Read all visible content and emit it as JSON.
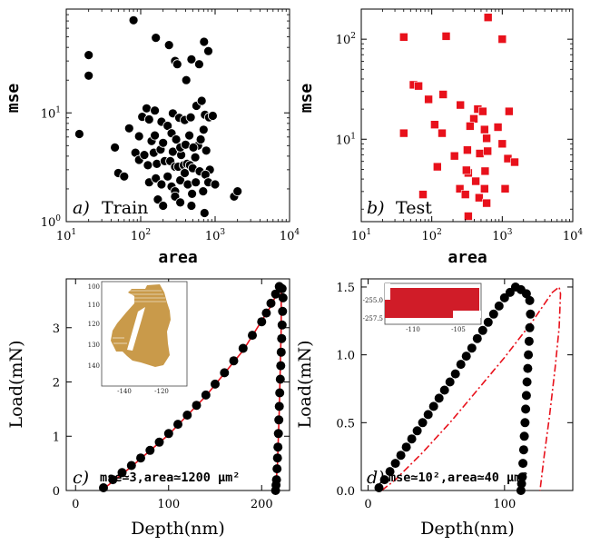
{
  "chart_data": [
    {
      "id": "a",
      "type": "scatter",
      "panel_letter": "a)",
      "panel_label": "Train",
      "xlabel": "area",
      "ylabel": "mse",
      "xscale": "log",
      "yscale": "log",
      "xlim": [
        10,
        10000
      ],
      "ylim": [
        1,
        90
      ],
      "x_ticks": [
        "10^1",
        "10^2",
        "10^3",
        "10^4"
      ],
      "y_ticks": [
        "10^0",
        "10^1"
      ],
      "marker": "circle",
      "color": "#000000",
      "points": [
        [
          80,
          71
        ],
        [
          20,
          34
        ],
        [
          20,
          22
        ],
        [
          160,
          49
        ],
        [
          240,
          42
        ],
        [
          290,
          30
        ],
        [
          310,
          28
        ],
        [
          410,
          20
        ],
        [
          480,
          31
        ],
        [
          610,
          28
        ],
        [
          710,
          45
        ],
        [
          810,
          37
        ],
        [
          15,
          6.4
        ],
        [
          45,
          4.8
        ],
        [
          70,
          7.2
        ],
        [
          95,
          6.1
        ],
        [
          120,
          11
        ],
        [
          105,
          9.2
        ],
        [
          130,
          8.7
        ],
        [
          155,
          10.5
        ],
        [
          190,
          8.3
        ],
        [
          230,
          7.6
        ],
        [
          270,
          9.9
        ],
        [
          330,
          9.0
        ],
        [
          390,
          8.6
        ],
        [
          470,
          9.1
        ],
        [
          560,
          11.6
        ],
        [
          660,
          12.9
        ],
        [
          730,
          9.6
        ],
        [
          830,
          9.1
        ],
        [
          930,
          9.4
        ],
        [
          50,
          2.8
        ],
        [
          60,
          2.6
        ],
        [
          85,
          4.3
        ],
        [
          95,
          3.7
        ],
        [
          112,
          4.1
        ],
        [
          140,
          5.5
        ],
        [
          150,
          4.3
        ],
        [
          165,
          3.4
        ],
        [
          185,
          4.6
        ],
        [
          210,
          3.6
        ],
        [
          250,
          3.6
        ],
        [
          270,
          4.4
        ],
        [
          290,
          3.2
        ],
        [
          320,
          3.2
        ],
        [
          350,
          4.1
        ],
        [
          380,
          3.3
        ],
        [
          420,
          3.4
        ],
        [
          460,
          3.3
        ],
        [
          500,
          3.1
        ],
        [
          540,
          3.9
        ],
        [
          590,
          5.0
        ],
        [
          640,
          5.7
        ],
        [
          700,
          7.0
        ],
        [
          760,
          4.5
        ],
        [
          850,
          3.0
        ],
        [
          125,
          3.3
        ],
        [
          155,
          6.2
        ],
        [
          200,
          5.3
        ],
        [
          260,
          6.5
        ],
        [
          300,
          5.7
        ],
        [
          340,
          4.8
        ],
        [
          400,
          5.1
        ],
        [
          450,
          6.2
        ],
        [
          510,
          4.8
        ],
        [
          130,
          2.3
        ],
        [
          160,
          2.5
        ],
        [
          190,
          2.2
        ],
        [
          230,
          2.6
        ],
        [
          260,
          2.1
        ],
        [
          290,
          1.9
        ],
        [
          340,
          2.4
        ],
        [
          390,
          2.8
        ],
        [
          430,
          2.2
        ],
        [
          490,
          1.8
        ],
        [
          550,
          2.3
        ],
        [
          620,
          2.9
        ],
        [
          690,
          1.9
        ],
        [
          740,
          2.7
        ],
        [
          810,
          2.3
        ],
        [
          1000,
          2.2
        ],
        [
          170,
          1.6
        ],
        [
          200,
          1.4
        ],
        [
          290,
          1.7
        ],
        [
          340,
          1.5
        ],
        [
          480,
          1.4
        ],
        [
          720,
          1.2
        ],
        [
          1800,
          1.7
        ],
        [
          2000,
          1.9
        ]
      ]
    },
    {
      "id": "b",
      "type": "scatter",
      "panel_letter": "b)",
      "panel_label": "Test",
      "xlabel": "area",
      "ylabel": "mse",
      "xscale": "log",
      "yscale": "log",
      "xlim": [
        10,
        10000
      ],
      "ylim": [
        1.5,
        200
      ],
      "x_ticks": [
        "10^1",
        "10^2",
        "10^3",
        "10^4"
      ],
      "y_ticks": [
        "10^1",
        "10^2"
      ],
      "marker": "square",
      "color": "#e8111b",
      "points": [
        [
          40,
          105
        ],
        [
          160,
          107
        ],
        [
          630,
          165
        ],
        [
          1000,
          100
        ],
        [
          55,
          35
        ],
        [
          65,
          34
        ],
        [
          90,
          25
        ],
        [
          145,
          28
        ],
        [
          255,
          22
        ],
        [
          395,
          16
        ],
        [
          450,
          20
        ],
        [
          530,
          19
        ],
        [
          1250,
          19
        ],
        [
          40,
          11.5
        ],
        [
          110,
          14
        ],
        [
          140,
          11.5
        ],
        [
          350,
          13.5
        ],
        [
          560,
          12.5
        ],
        [
          600,
          10.2
        ],
        [
          870,
          13.2
        ],
        [
          120,
          5.3
        ],
        [
          210,
          6.8
        ],
        [
          320,
          7.8
        ],
        [
          480,
          7.2
        ],
        [
          620,
          7.6
        ],
        [
          1000,
          9.0
        ],
        [
          1200,
          6.4
        ],
        [
          1500,
          5.9
        ],
        [
          75,
          2.8
        ],
        [
          250,
          3.2
        ],
        [
          300,
          2.8
        ],
        [
          330,
          4.6
        ],
        [
          420,
          3.8
        ],
        [
          470,
          2.6
        ],
        [
          560,
          3.2
        ],
        [
          570,
          4.8
        ],
        [
          600,
          2.3
        ],
        [
          1100,
          3.2
        ],
        [
          310,
          4.9
        ],
        [
          330,
          1.7
        ]
      ]
    },
    {
      "id": "c",
      "type": "line",
      "panel_letter": "c)",
      "annotation_text": "mse≃3,area≃1200 μm²",
      "xlabel": "Depth(nm)",
      "ylabel": "Load(mN)",
      "xlim": [
        -10,
        230
      ],
      "ylim": [
        0,
        3.9
      ],
      "x_ticks": [
        0,
        100,
        200
      ],
      "y_ticks": [
        0,
        1,
        2,
        3
      ],
      "series": [
        {
          "style": "markers",
          "color": "#000000",
          "x": [
            30,
            40,
            50,
            60,
            70,
            80,
            90,
            100,
            110,
            120,
            130,
            140,
            150,
            160,
            170,
            180,
            190,
            200,
            205,
            210,
            215,
            219,
            222,
            223,
            222.5,
            222,
            221.5,
            221,
            220.5,
            220,
            219.5,
            219,
            218.5,
            218,
            217.5,
            217,
            216.5,
            216,
            215.5,
            215
          ],
          "y": [
            0.05,
            0.2,
            0.33,
            0.46,
            0.6,
            0.74,
            0.89,
            1.05,
            1.22,
            1.39,
            1.57,
            1.76,
            1.96,
            2.17,
            2.39,
            2.62,
            2.86,
            3.11,
            3.27,
            3.45,
            3.62,
            3.76,
            3.72,
            3.55,
            3.3,
            3.05,
            2.8,
            2.55,
            2.3,
            2.05,
            1.8,
            1.55,
            1.3,
            1.05,
            0.8,
            0.6,
            0.4,
            0.2,
            0.1,
            0.0
          ]
        },
        {
          "style": "line",
          "color": "#e8111b",
          "x": [
            28,
            60,
            100,
            140,
            180,
            210,
            221,
            221,
            219,
            217,
            215
          ],
          "y": [
            0.0,
            0.44,
            1.03,
            1.74,
            2.58,
            3.4,
            3.8,
            3.0,
            1.5,
            0.5,
            0.0
          ]
        }
      ],
      "inset": {
        "type": "image",
        "color": "#c99a4a",
        "x_ticks": [
          "-140",
          "-120"
        ],
        "y_ticks": [
          "100",
          "110",
          "120",
          "130",
          "140"
        ]
      }
    },
    {
      "id": "d",
      "type": "line",
      "panel_letter": "d)",
      "annotation_text": "mse≃10²,area≃40 μm²",
      "xlabel": "Depth(nm)",
      "ylabel": "Load(mN)",
      "xlim": [
        -5,
        150
      ],
      "ylim": [
        0,
        1.56
      ],
      "x_ticks": [
        0,
        100
      ],
      "y_ticks": [
        "0.0",
        "0.5",
        "1.0",
        "1.5"
      ],
      "series": [
        {
          "style": "markers",
          "color": "#000000",
          "x": [
            8,
            12,
            16,
            20,
            24,
            28,
            32,
            36,
            40,
            44,
            48,
            52,
            56,
            60,
            64,
            68,
            72,
            76,
            80,
            84,
            88,
            92,
            96,
            100,
            104,
            108,
            112,
            116,
            118.5,
            119,
            118.5,
            118,
            117.5,
            117,
            116.5,
            116,
            115.5,
            115,
            114.5,
            114,
            113.5,
            113,
            112.5,
            112
          ],
          "y": [
            0.02,
            0.08,
            0.14,
            0.2,
            0.26,
            0.32,
            0.38,
            0.44,
            0.5,
            0.56,
            0.62,
            0.68,
            0.74,
            0.8,
            0.86,
            0.93,
            0.99,
            1.05,
            1.12,
            1.18,
            1.24,
            1.3,
            1.36,
            1.42,
            1.46,
            1.5,
            1.48,
            1.45,
            1.4,
            1.3,
            1.2,
            1.1,
            1.0,
            0.9,
            0.8,
            0.7,
            0.6,
            0.5,
            0.4,
            0.3,
            0.2,
            0.1,
            0.05,
            0.0
          ]
        },
        {
          "style": "dashdot",
          "color": "#e8111b",
          "x": [
            10,
            20,
            40,
            60,
            80,
            100,
            120,
            135,
            140,
            141,
            140,
            137,
            133,
            129,
            126
          ],
          "y": [
            0.0,
            0.08,
            0.28,
            0.5,
            0.74,
            0.98,
            1.24,
            1.46,
            1.5,
            1.45,
            1.2,
            0.9,
            0.55,
            0.25,
            0.0
          ]
        }
      ],
      "inset": {
        "type": "image",
        "color": "#d01c28",
        "x_ticks": [
          "-110",
          "-105"
        ],
        "y_ticks": [
          "-255.0",
          "-257.5"
        ]
      }
    }
  ]
}
